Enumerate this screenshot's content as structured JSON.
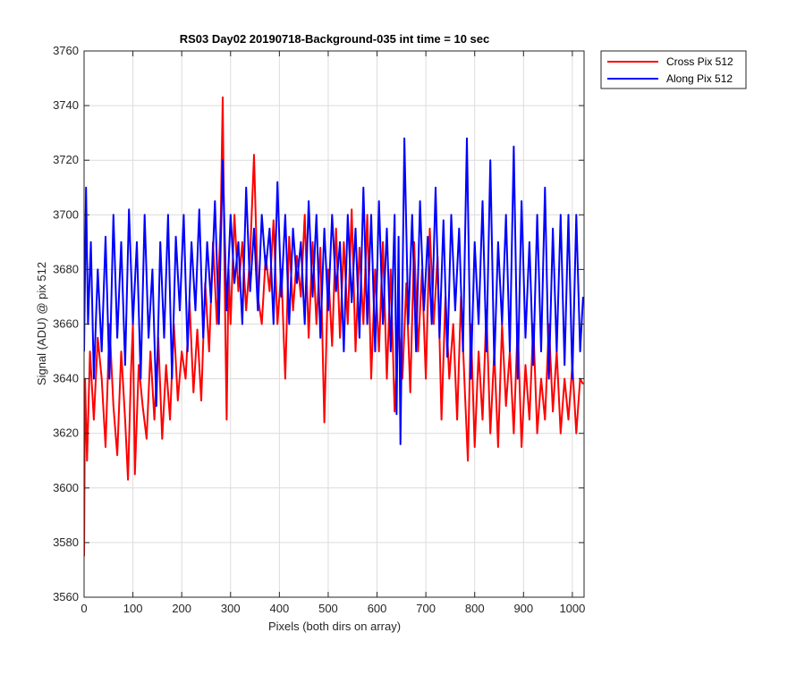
{
  "chart_data": {
    "type": "line",
    "title": "RS03 Day02 20190718-Background-035 int time = 10 sec",
    "xlabel": "Pixels (both dirs on array)",
    "ylabel": "Signal (ADU) @ pix 512",
    "xlim": [
      0,
      1024
    ],
    "ylim": [
      3560,
      3760
    ],
    "xticks": [
      0,
      100,
      200,
      300,
      400,
      500,
      600,
      700,
      800,
      900,
      1000
    ],
    "yticks": [
      3560,
      3580,
      3600,
      3620,
      3640,
      3660,
      3680,
      3700,
      3720,
      3740,
      3760
    ],
    "grid": true,
    "legend": "outside-top-right",
    "series": [
      {
        "name": "Cross Pix 512",
        "color": "#ff0000",
        "x": [
          0,
          2,
          6,
          12,
          20,
          28,
          36,
          44,
          52,
          60,
          68,
          76,
          84,
          90,
          96,
          100,
          104,
          112,
          120,
          128,
          136,
          144,
          152,
          160,
          168,
          176,
          184,
          192,
          200,
          208,
          216,
          224,
          232,
          240,
          248,
          256,
          264,
          272,
          280,
          284,
          288,
          292,
          296,
          300,
          308,
          316,
          324,
          332,
          340,
          348,
          356,
          364,
          372,
          380,
          388,
          396,
          404,
          412,
          420,
          428,
          436,
          444,
          452,
          460,
          468,
          476,
          484,
          492,
          500,
          508,
          516,
          524,
          532,
          540,
          548,
          556,
          564,
          572,
          580,
          588,
          596,
          604,
          612,
          620,
          628,
          636,
          644,
          652,
          660,
          668,
          676,
          684,
          692,
          700,
          708,
          716,
          724,
          732,
          740,
          748,
          756,
          764,
          772,
          780,
          786,
          792,
          800,
          808,
          816,
          824,
          832,
          840,
          848,
          856,
          864,
          872,
          880,
          888,
          896,
          904,
          912,
          920,
          928,
          936,
          944,
          952,
          960,
          968,
          976,
          984,
          992,
          1000,
          1008,
          1016,
          1022
        ],
        "y": [
          3575,
          3640,
          3610,
          3650,
          3625,
          3655,
          3640,
          3615,
          3660,
          3630,
          3612,
          3650,
          3625,
          3603,
          3642,
          3660,
          3605,
          3645,
          3630,
          3618,
          3650,
          3625,
          3655,
          3618,
          3645,
          3625,
          3660,
          3632,
          3650,
          3640,
          3668,
          3635,
          3658,
          3632,
          3675,
          3650,
          3690,
          3660,
          3700,
          3743,
          3675,
          3625,
          3680,
          3660,
          3700,
          3672,
          3690,
          3665,
          3685,
          3722,
          3670,
          3660,
          3685,
          3672,
          3698,
          3660,
          3680,
          3640,
          3692,
          3665,
          3685,
          3670,
          3700,
          3655,
          3690,
          3660,
          3688,
          3624,
          3680,
          3652,
          3695,
          3655,
          3690,
          3660,
          3702,
          3650,
          3688,
          3660,
          3700,
          3640,
          3680,
          3650,
          3690,
          3640,
          3680,
          3628,
          3660,
          3640,
          3675,
          3635,
          3690,
          3650,
          3680,
          3640,
          3695,
          3660,
          3685,
          3625,
          3670,
          3640,
          3660,
          3625,
          3670,
          3635,
          3610,
          3660,
          3615,
          3650,
          3625,
          3665,
          3620,
          3650,
          3615,
          3660,
          3630,
          3650,
          3620,
          3660,
          3615,
          3645,
          3625,
          3660,
          3620,
          3640,
          3625,
          3660,
          3628,
          3650,
          3620,
          3640,
          3625,
          3645,
          3620,
          3640,
          3638
        ]
      },
      {
        "name": "Along Pix 512",
        "color": "#0000ff",
        "x": [
          0,
          4,
          8,
          14,
          20,
          28,
          36,
          44,
          52,
          60,
          68,
          76,
          84,
          92,
          100,
          108,
          116,
          124,
          132,
          140,
          148,
          156,
          164,
          172,
          180,
          188,
          196,
          204,
          212,
          220,
          228,
          236,
          244,
          252,
          260,
          268,
          276,
          284,
          292,
          300,
          308,
          316,
          324,
          332,
          340,
          348,
          356,
          364,
          372,
          380,
          388,
          396,
          404,
          412,
          420,
          428,
          436,
          444,
          452,
          460,
          468,
          476,
          484,
          492,
          500,
          508,
          516,
          524,
          532,
          540,
          548,
          556,
          564,
          572,
          580,
          588,
          596,
          604,
          612,
          620,
          628,
          636,
          640,
          644,
          648,
          656,
          664,
          672,
          680,
          688,
          696,
          704,
          712,
          720,
          728,
          736,
          744,
          752,
          760,
          768,
          776,
          784,
          792,
          800,
          808,
          816,
          824,
          832,
          840,
          848,
          856,
          864,
          872,
          880,
          888,
          896,
          904,
          912,
          920,
          928,
          936,
          944,
          952,
          960,
          968,
          976,
          984,
          992,
          1000,
          1008,
          1016,
          1022
        ],
        "y": [
          3650,
          3710,
          3660,
          3690,
          3640,
          3680,
          3650,
          3692,
          3640,
          3700,
          3655,
          3690,
          3645,
          3702,
          3660,
          3690,
          3640,
          3700,
          3655,
          3680,
          3630,
          3690,
          3655,
          3700,
          3640,
          3692,
          3665,
          3700,
          3650,
          3690,
          3665,
          3702,
          3655,
          3690,
          3668,
          3705,
          3660,
          3720,
          3665,
          3700,
          3675,
          3690,
          3660,
          3710,
          3672,
          3695,
          3665,
          3700,
          3680,
          3695,
          3660,
          3712,
          3670,
          3700,
          3660,
          3695,
          3675,
          3690,
          3660,
          3705,
          3670,
          3700,
          3655,
          3695,
          3665,
          3700,
          3672,
          3690,
          3650,
          3700,
          3668,
          3695,
          3655,
          3710,
          3660,
          3700,
          3650,
          3705,
          3660,
          3695,
          3650,
          3700,
          3627,
          3692,
          3616,
          3728,
          3660,
          3700,
          3650,
          3705,
          3665,
          3692,
          3660,
          3710,
          3655,
          3698,
          3648,
          3700,
          3665,
          3695,
          3650,
          3728,
          3640,
          3690,
          3660,
          3705,
          3650,
          3720,
          3645,
          3690,
          3660,
          3700,
          3650,
          3725,
          3640,
          3705,
          3655,
          3690,
          3645,
          3700,
          3650,
          3710,
          3640,
          3695,
          3650,
          3700,
          3645,
          3700,
          3640,
          3700,
          3650,
          3670
        ]
      }
    ]
  }
}
